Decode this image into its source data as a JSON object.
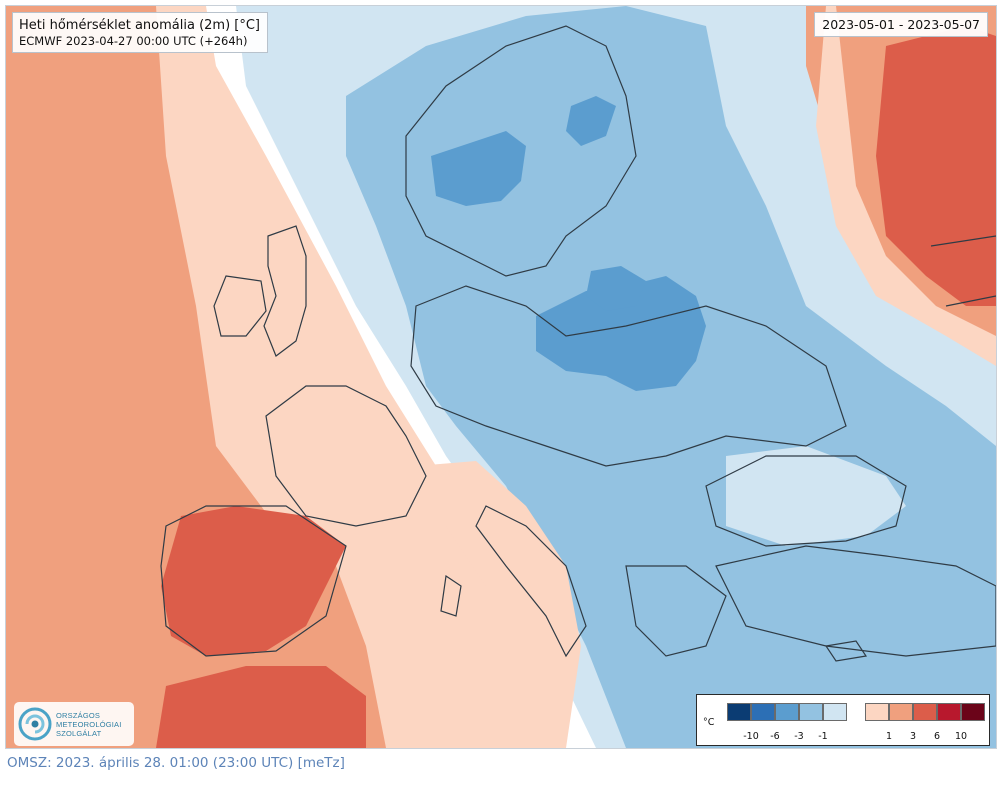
{
  "title": {
    "line1": "Heti hőmérséklet anomália (2m) [°C]",
    "line2": "ECMWF 2023-04-27 00:00 UTC (+264h)"
  },
  "date_range": "2023-05-01 - 2023-05-07",
  "logo": {
    "icon": "omsz-swirl-icon",
    "lines": [
      "ORSZÁGOS",
      "METEOROLÓGIAI",
      "SZOLGÁLAT"
    ]
  },
  "legend": {
    "unit": "°C",
    "negative": {
      "colors": [
        "#0b3c73",
        "#2c6fb5",
        "#5b9dcf",
        "#93c2e1",
        "#d1e5f2"
      ],
      "ticks": [
        "-10",
        "-6",
        "-3",
        "-1"
      ]
    },
    "positive": {
      "colors": [
        "#fcd6c2",
        "#f0a07e",
        "#dc5d4a",
        "#b8182d",
        "#6b0419"
      ],
      "ticks": [
        "1",
        "3",
        "6",
        "10"
      ]
    }
  },
  "footer": "OMSZ: 2023. április 28. 01:00 (23:00  UTC)  [meTz]",
  "colors": {
    "neutral": "#ffffff",
    "pos_1_3": "#f0a07e",
    "pos_0_1": "#fcd6c2",
    "pos_3_6": "#dc5d4a",
    "neg_0_1": "#d1e5f2",
    "neg_1_3": "#93c2e1",
    "neg_3_6": "#5b9dcf"
  }
}
